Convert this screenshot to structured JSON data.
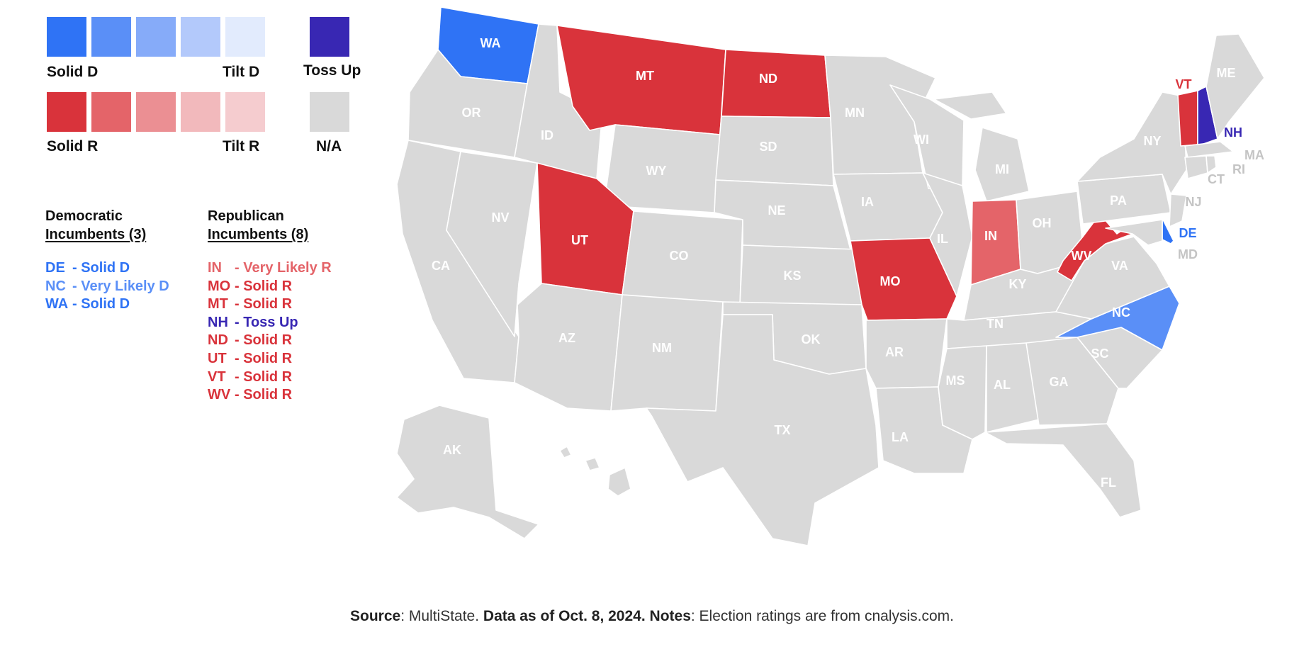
{
  "legend": {
    "dem_swatches": [
      "#2f73f5",
      "#5a8ff7",
      "#86abf9",
      "#b3c9fb",
      "#e2ebfd"
    ],
    "rep_swatches": [
      "#d9333b",
      "#e46469",
      "#eb8f93",
      "#f2b9bc",
      "#f5cccf"
    ],
    "tossup_color": "#3827b3",
    "na_color": "#d9d9d9",
    "solid_d": "Solid D",
    "tilt_d": "Tilt D",
    "solid_r": "Solid R",
    "tilt_r": "Tilt R",
    "toss_up": "Toss Up",
    "na": "N/A"
  },
  "incumbents": {
    "dem_head_1": "Democratic",
    "dem_head_2": "Incumbents (3)",
    "rep_head_1": "Republican",
    "rep_head_2": "Incumbents (8)",
    "dem": [
      {
        "state": "DE",
        "rating": "- Solid D",
        "color": "#2f73f5"
      },
      {
        "state": "NC",
        "rating": "- Very Likely D",
        "color": "#5a8ff7"
      },
      {
        "state": "WA",
        "rating": "- Solid D",
        "color": "#2f73f5"
      }
    ],
    "rep": [
      {
        "state": "IN",
        "rating": "- Very Likely R",
        "color": "#e46469"
      },
      {
        "state": "MO",
        "rating": "- Solid R",
        "color": "#d9333b"
      },
      {
        "state": "MT",
        "rating": "- Solid R",
        "color": "#d9333b"
      },
      {
        "state": "NH",
        "rating": "- Toss Up",
        "color": "#3827b3"
      },
      {
        "state": "ND",
        "rating": "- Solid R",
        "color": "#d9333b"
      },
      {
        "state": "UT",
        "rating": "- Solid R",
        "color": "#d9333b"
      },
      {
        "state": "VT",
        "rating": "- Solid R",
        "color": "#d9333b"
      },
      {
        "state": "WV",
        "rating": "- Solid R",
        "color": "#d9333b"
      }
    ]
  },
  "map": {
    "states": [
      {
        "abbr": "WA",
        "rating": "Solid D",
        "color": "#2f73f5"
      },
      {
        "abbr": "OR",
        "rating": "N/A",
        "color": "#d9d9d9"
      },
      {
        "abbr": "CA",
        "rating": "N/A",
        "color": "#d9d9d9"
      },
      {
        "abbr": "NV",
        "rating": "N/A",
        "color": "#d9d9d9"
      },
      {
        "abbr": "ID",
        "rating": "N/A",
        "color": "#d9d9d9"
      },
      {
        "abbr": "MT",
        "rating": "Solid R",
        "color": "#d9333b"
      },
      {
        "abbr": "WY",
        "rating": "N/A",
        "color": "#d9d9d9"
      },
      {
        "abbr": "UT",
        "rating": "Solid R",
        "color": "#d9333b"
      },
      {
        "abbr": "AZ",
        "rating": "N/A",
        "color": "#d9d9d9"
      },
      {
        "abbr": "CO",
        "rating": "N/A",
        "color": "#d9d9d9"
      },
      {
        "abbr": "NM",
        "rating": "N/A",
        "color": "#d9d9d9"
      },
      {
        "abbr": "ND",
        "rating": "Solid R",
        "color": "#d9333b"
      },
      {
        "abbr": "SD",
        "rating": "N/A",
        "color": "#d9d9d9"
      },
      {
        "abbr": "NE",
        "rating": "N/A",
        "color": "#d9d9d9"
      },
      {
        "abbr": "KS",
        "rating": "N/A",
        "color": "#d9d9d9"
      },
      {
        "abbr": "OK",
        "rating": "N/A",
        "color": "#d9d9d9"
      },
      {
        "abbr": "TX",
        "rating": "N/A",
        "color": "#d9d9d9"
      },
      {
        "abbr": "MN",
        "rating": "N/A",
        "color": "#d9d9d9"
      },
      {
        "abbr": "IA",
        "rating": "N/A",
        "color": "#d9d9d9"
      },
      {
        "abbr": "MO",
        "rating": "Solid R",
        "color": "#d9333b"
      },
      {
        "abbr": "AR",
        "rating": "N/A",
        "color": "#d9d9d9"
      },
      {
        "abbr": "LA",
        "rating": "N/A",
        "color": "#d9d9d9"
      },
      {
        "abbr": "WI",
        "rating": "N/A",
        "color": "#d9d9d9"
      },
      {
        "abbr": "IL",
        "rating": "N/A",
        "color": "#d9d9d9"
      },
      {
        "abbr": "MI",
        "rating": "N/A",
        "color": "#d9d9d9"
      },
      {
        "abbr": "IN",
        "rating": "Very Likely R",
        "color": "#e46469"
      },
      {
        "abbr": "OH",
        "rating": "N/A",
        "color": "#d9d9d9"
      },
      {
        "abbr": "KY",
        "rating": "N/A",
        "color": "#d9d9d9"
      },
      {
        "abbr": "TN",
        "rating": "N/A",
        "color": "#d9d9d9"
      },
      {
        "abbr": "MS",
        "rating": "N/A",
        "color": "#d9d9d9"
      },
      {
        "abbr": "AL",
        "rating": "N/A",
        "color": "#d9d9d9"
      },
      {
        "abbr": "GA",
        "rating": "N/A",
        "color": "#d9d9d9"
      },
      {
        "abbr": "FL",
        "rating": "N/A",
        "color": "#d9d9d9"
      },
      {
        "abbr": "SC",
        "rating": "N/A",
        "color": "#d9d9d9"
      },
      {
        "abbr": "NC",
        "rating": "Very Likely D",
        "color": "#5a8ff7"
      },
      {
        "abbr": "VA",
        "rating": "N/A",
        "color": "#d9d9d9"
      },
      {
        "abbr": "WV",
        "rating": "Solid R",
        "color": "#d9333b"
      },
      {
        "abbr": "PA",
        "rating": "N/A",
        "color": "#d9d9d9"
      },
      {
        "abbr": "NY",
        "rating": "N/A",
        "color": "#d9d9d9"
      },
      {
        "abbr": "NJ",
        "rating": "N/A",
        "color": "#d9d9d9"
      },
      {
        "abbr": "DE",
        "rating": "Solid D",
        "color": "#2f73f5"
      },
      {
        "abbr": "MD",
        "rating": "N/A",
        "color": "#d9d9d9"
      },
      {
        "abbr": "VT",
        "rating": "Solid R",
        "color": "#d9333b"
      },
      {
        "abbr": "NH",
        "rating": "Toss Up",
        "color": "#3827b3"
      },
      {
        "abbr": "ME",
        "rating": "N/A",
        "color": "#d9d9d9"
      },
      {
        "abbr": "MA",
        "rating": "N/A",
        "color": "#d9d9d9"
      },
      {
        "abbr": "CT",
        "rating": "N/A",
        "color": "#d9d9d9"
      },
      {
        "abbr": "RI",
        "rating": "N/A",
        "color": "#d9d9d9"
      },
      {
        "abbr": "AK",
        "rating": "N/A",
        "color": "#d9d9d9"
      },
      {
        "abbr": "HI",
        "rating": "N/A",
        "color": "#d9d9d9"
      }
    ],
    "label_dark_color": "#ffffff",
    "label_light_color": "#ffffff",
    "outside_label_color_na": "#c4c4c4"
  },
  "footer": {
    "source_label": "Source",
    "source_text": ": MultiState. ",
    "data_label": "Data as of Oct. 8, 2024.",
    "notes_label": " Notes",
    "notes_text": ": Election ratings are from cnalysis.com."
  }
}
